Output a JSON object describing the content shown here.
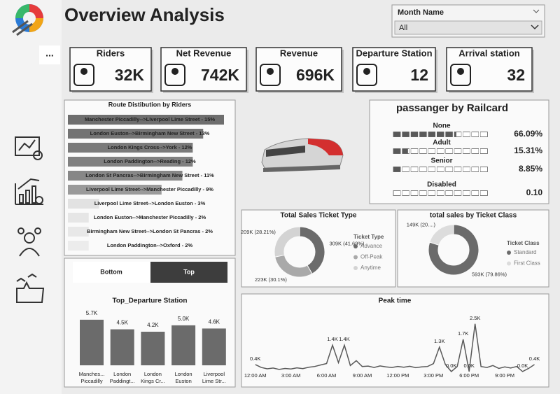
{
  "header": {
    "title": "Overview Analysis"
  },
  "slicer": {
    "label": "Month Name",
    "value": "All"
  },
  "more_button": "...",
  "kpis": [
    {
      "label": "Riders",
      "value": "32K"
    },
    {
      "label": "Net Revenue",
      "value": "742K"
    },
    {
      "label": "Revenue",
      "value": "696K"
    },
    {
      "label": "Departure Station",
      "value": "12"
    },
    {
      "label": "Arrival station",
      "value": "32"
    }
  ],
  "toggle": {
    "options": [
      "Bottom",
      "Top"
    ],
    "selected": 1
  },
  "chart_data": [
    {
      "type": "hbar",
      "title": "Route Distibution by Riders",
      "values": [
        15,
        13,
        12,
        12,
        11,
        9,
        3,
        2,
        2,
        2
      ],
      "value_labels": [
        "Manchester Piccadilly-->Liverpool Lime Street - 15%",
        "London Euston-->Birmingham New Street - 13%",
        "London Kings Cross-->York - 12%",
        "London Paddington-->Reading - 12%",
        "London St Pancras-->Birmingham New Street - 11%",
        "Liverpool Lime Street-->Manchester Piccadilly - 9%",
        "Liverpool Lime Street-->London Euston - 3%",
        "London Euston-->Manchester Piccadilly - 2%",
        "Birmingham New Street-->London St Pancras - 2%",
        "London Paddington-->Oxford - 2%"
      ],
      "colors": [
        "#6e6e6e",
        "#747474",
        "#7a7a7a",
        "#808080",
        "#878787",
        "#9a9a9a",
        "#e2e2e2",
        "#e6e6e6",
        "#e8e8e8",
        "#ececec"
      ],
      "xlim": [
        0,
        15
      ]
    },
    {
      "type": "progress",
      "title": "passanger by Railcard",
      "categories": [
        "None",
        "Adult",
        "Senior",
        "Disabled"
      ],
      "values": [
        66.09,
        15.31,
        8.85,
        0.1
      ],
      "value_labels": [
        "66.09%",
        "15.31%",
        "8.85%",
        "0.10"
      ],
      "color": "#595959",
      "xlim": [
        0,
        100
      ]
    },
    {
      "type": "donut",
      "title": "Total Sales Ticket Type",
      "legend_title": "Ticket Type",
      "categories": [
        "Advance",
        "Off-Peak",
        "Anytime"
      ],
      "values": [
        309000,
        223000,
        209000
      ],
      "value_labels": [
        "309K (41.69%)",
        "223K (30.1%)",
        "209K (28.21%)"
      ],
      "colors": [
        "#6b6b6b",
        "#a9a9a9",
        "#d3d3d3"
      ]
    },
    {
      "type": "donut",
      "title": "total sales by Ticket Class",
      "legend_title": "Ticket Class",
      "categories": [
        "Standard",
        "First Class"
      ],
      "values": [
        593000,
        149000
      ],
      "value_labels": [
        "593K (79.86%)",
        "149K (20....)"
      ],
      "colors": [
        "#6b6b6b",
        "#dcdcdc"
      ]
    },
    {
      "type": "column",
      "title": "Top_Departure Station",
      "categories": [
        [
          "Manches...",
          "Piccadilly"
        ],
        [
          "London",
          "Paddingt..."
        ],
        [
          "London",
          "Kings Cr..."
        ],
        [
          "London",
          "Euston"
        ],
        [
          "Liverpool",
          "Lime Str..."
        ]
      ],
      "values": [
        5700,
        4500,
        4200,
        5000,
        4600
      ],
      "value_labels": [
        "5.7K",
        "4.5K",
        "4.2K",
        "5.0K",
        "4.6K"
      ],
      "color": "#6b6b6b",
      "ylim": [
        0,
        6300
      ]
    },
    {
      "type": "line",
      "title": "Peak time",
      "x": [
        0,
        0.5,
        1,
        1.5,
        2,
        2.5,
        3,
        3.5,
        4,
        4.5,
        5,
        5.5,
        6,
        6.5,
        7,
        7.5,
        8,
        8.5,
        9,
        9.5,
        10,
        10.5,
        11,
        11.5,
        12,
        12.5,
        13,
        13.5,
        14,
        14.5,
        15,
        15.5,
        16,
        16.5,
        17,
        17.5,
        18,
        18.5,
        19,
        19.5,
        20,
        20.5,
        21,
        21.5,
        22,
        22.5,
        23,
        23.5
      ],
      "values": [
        400,
        250,
        180,
        220,
        150,
        200,
        170,
        230,
        190,
        260,
        300,
        380,
        450,
        1400,
        500,
        1400,
        350,
        600,
        300,
        320,
        250,
        330,
        280,
        250,
        300,
        260,
        310,
        240,
        280,
        300,
        450,
        1300,
        400,
        40,
        300,
        1700,
        40,
        2500,
        300,
        250,
        350,
        200,
        280,
        220,
        300,
        40,
        200,
        400
      ],
      "value_labels": [
        "0.4K",
        null,
        null,
        null,
        null,
        null,
        null,
        null,
        null,
        null,
        null,
        null,
        null,
        "1.4K",
        null,
        "1.4K",
        null,
        null,
        null,
        null,
        null,
        null,
        null,
        null,
        null,
        null,
        null,
        null,
        null,
        null,
        null,
        "1.3K",
        null,
        "0.0K",
        null,
        "1.7K",
        "0.0K",
        "2.5K",
        null,
        null,
        null,
        null,
        null,
        null,
        null,
        "0.0K",
        null,
        "0.4K"
      ],
      "color": "#595959",
      "xlim": [
        -0.75,
        24
      ],
      "ylim": [
        0,
        2600
      ],
      "xticks": [
        {
          "value": 0,
          "label": "12:00 AM"
        },
        {
          "value": 3,
          "label": "3:00 AM"
        },
        {
          "value": 6,
          "label": "6:00 AM"
        },
        {
          "value": 9,
          "label": "9:00 AM"
        },
        {
          "value": 12,
          "label": "12:00 PM"
        },
        {
          "value": 15,
          "label": "3:00 PM"
        },
        {
          "value": 18,
          "label": "6:00 PM"
        },
        {
          "value": 21,
          "label": "9:00 PM"
        }
      ]
    }
  ]
}
